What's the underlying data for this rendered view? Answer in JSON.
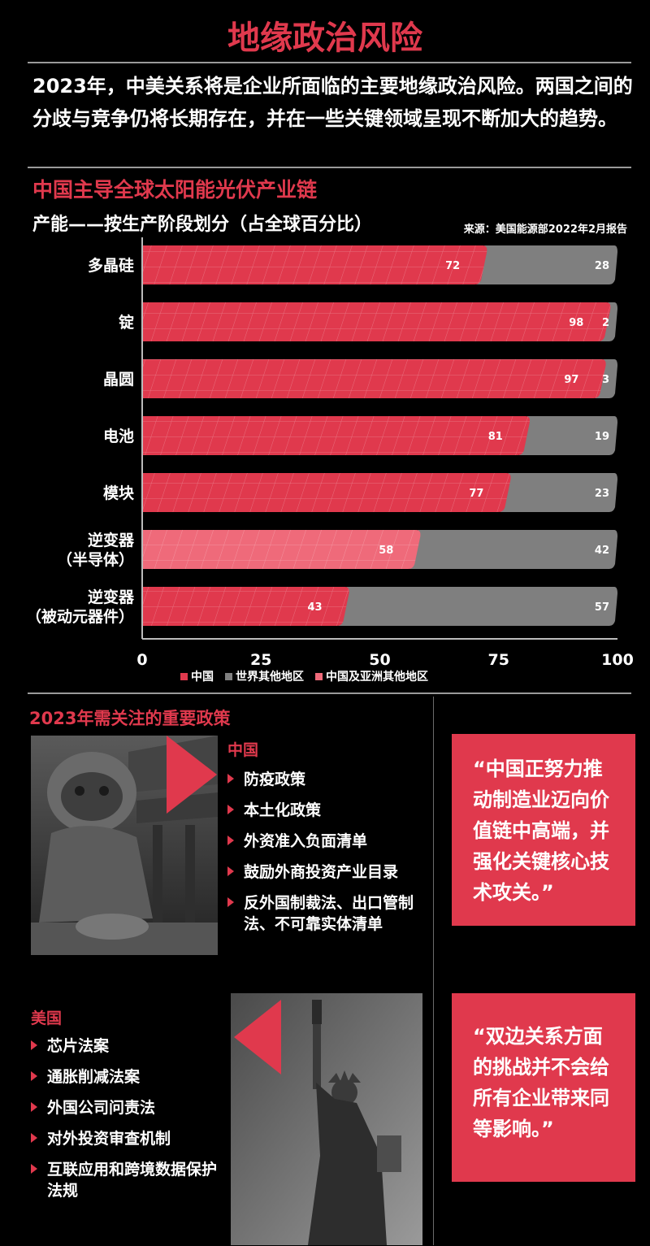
{
  "page": {
    "title": "地缘政治风险",
    "intro": "2023年，中美关系将是企业所面临的主要地缘政治风险。两国之间的分歧与竞争仍将长期存在，并在一些关键领域呈现不断加大的趋势。",
    "section_title": "中国主导全球太阳能光伏产业链",
    "subtitle": "产能——按生产阶段划分（占全球百分比）",
    "source": "来源：美国能源部2022年2月报告"
  },
  "colors": {
    "china": "#e0394d",
    "rest": "#7f7f7f",
    "china_asia": "#ef6a7a",
    "accent": "#e0394d"
  },
  "chart_data": {
    "type": "bar",
    "orientation": "horizontal",
    "stacked": true,
    "title": "中国主导全球太阳能光伏产业链",
    "subtitle": "产能——按生产阶段划分（占全球百分比）",
    "categories": [
      "多晶硅",
      "锭",
      "晶圆",
      "电池",
      "模块",
      "逆变器\n（半导体）",
      "逆变器\n（被动元器件）"
    ],
    "series": [
      {
        "name": "中国",
        "values": [
          72,
          98,
          97,
          81,
          77,
          null,
          43
        ],
        "color": "#e0394d"
      },
      {
        "name": "中国及亚洲其他地区",
        "values": [
          null,
          null,
          null,
          null,
          null,
          58,
          null
        ],
        "color": "#ef6a7a"
      },
      {
        "name": "世界其他地区",
        "values": [
          28,
          2,
          3,
          19,
          23,
          42,
          57
        ],
        "color": "#7f7f7f"
      }
    ],
    "xlim": [
      0,
      100
    ],
    "xticks": [
      0,
      25,
      50,
      75,
      100
    ],
    "legend": [
      {
        "label": "中国",
        "color": "#e0394d"
      },
      {
        "label": "世界其他地区",
        "color": "#7f7f7f"
      },
      {
        "label": "中国及亚洲其他地区",
        "color": "#ef6a7a"
      }
    ],
    "legend_position": "bottom"
  },
  "policy": {
    "title": "2023年需关注的重要政策",
    "china": {
      "label": "中国",
      "items": [
        "防疫政策",
        "本土化政策",
        "外资准入负面清单",
        "鼓励外商投资产业目录",
        "反外国制裁法、出口管制法、不可靠实体清单"
      ]
    },
    "us": {
      "label": "美国",
      "items": [
        "芯片法案",
        "通胀削减法案",
        "外国公司问责法",
        "对外投资审查机制",
        "互联应用和跨境数据保护法规"
      ]
    },
    "quote1": "“中国正努力推动制造业迈向价值链中高端，并强化关键核心技术攻关。”",
    "quote2": "“双边关系方面的挑战并不会给所有企业带来同等影响。”"
  }
}
